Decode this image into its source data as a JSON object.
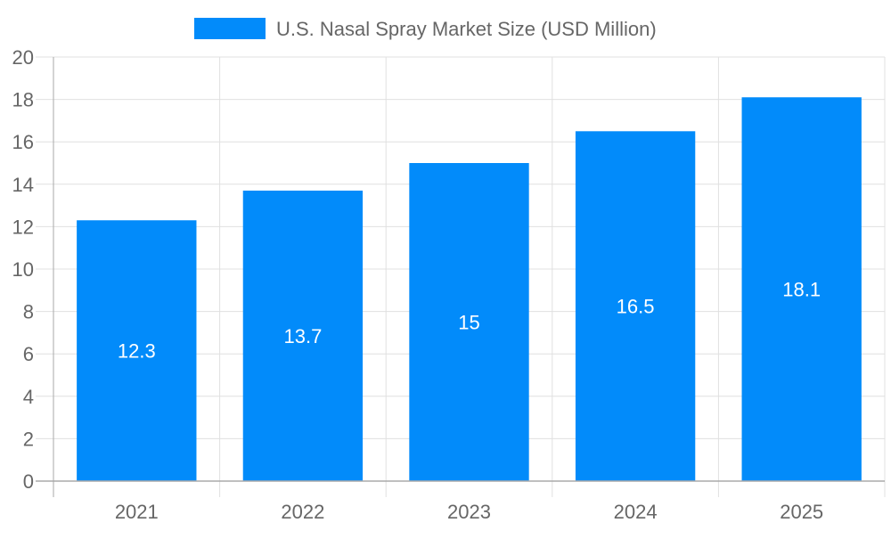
{
  "chart_data": {
    "type": "bar",
    "title": "",
    "legend": [
      {
        "label": "U.S. Nasal Spray Market Size (USD Million)",
        "color": "#028bfa"
      }
    ],
    "legend_placement": "top-center",
    "categories": [
      "2021",
      "2022",
      "2023",
      "2024",
      "2025"
    ],
    "values": [
      12.3,
      13.7,
      15,
      16.5,
      18.1
    ],
    "data_labels": [
      "12.3",
      "13.7",
      "15",
      "16.5",
      "18.1"
    ],
    "xlabel": "",
    "ylabel": "",
    "ylim": [
      0,
      20
    ],
    "yticks": [
      "0",
      "2",
      "4",
      "6",
      "8",
      "10",
      "12",
      "14",
      "16",
      "18",
      "20"
    ],
    "grid": true
  }
}
